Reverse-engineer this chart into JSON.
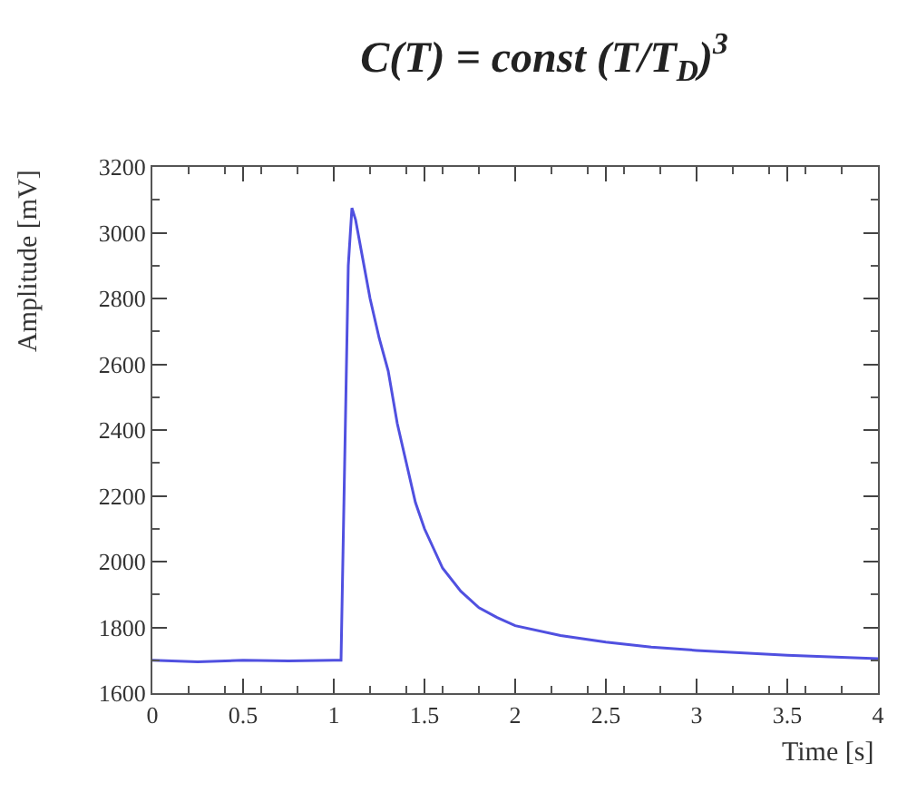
{
  "chart_data": {
    "type": "line",
    "title": "C(T) = const (T/T$_{D}$)$^{3}$",
    "xlabel": "Time [s]",
    "ylabel": "Amplitude [mV]",
    "x": [
      0,
      0.25,
      0.5,
      0.75,
      1.0,
      1.04,
      1.06,
      1.08,
      1.1,
      1.12,
      1.15,
      1.2,
      1.25,
      1.3,
      1.35,
      1.4,
      1.45,
      1.5,
      1.6,
      1.7,
      1.8,
      1.9,
      2.0,
      2.25,
      2.5,
      2.75,
      3.0,
      3.5,
      4.0
    ],
    "series": [
      {
        "color": "#5050e0",
        "values": [
          1700,
          1695,
          1700,
          1698,
          1700,
          1700,
          2300,
          2900,
          3075,
          3040,
          2950,
          2800,
          2680,
          2580,
          2420,
          2300,
          2180,
          2100,
          1980,
          1910,
          1860,
          1830,
          1805,
          1775,
          1755,
          1740,
          1730,
          1715,
          1705
        ]
      }
    ],
    "xlim": [
      0,
      4
    ],
    "ylim": [
      1600,
      3200
    ],
    "xticks": [
      0,
      0.5,
      1,
      1.5,
      2,
      2.5,
      3,
      3.5,
      4
    ],
    "yticks": [
      1600,
      1800,
      2000,
      2200,
      2400,
      2600,
      2800,
      3000,
      3200
    ],
    "marker": "none",
    "line_style": "solid"
  }
}
